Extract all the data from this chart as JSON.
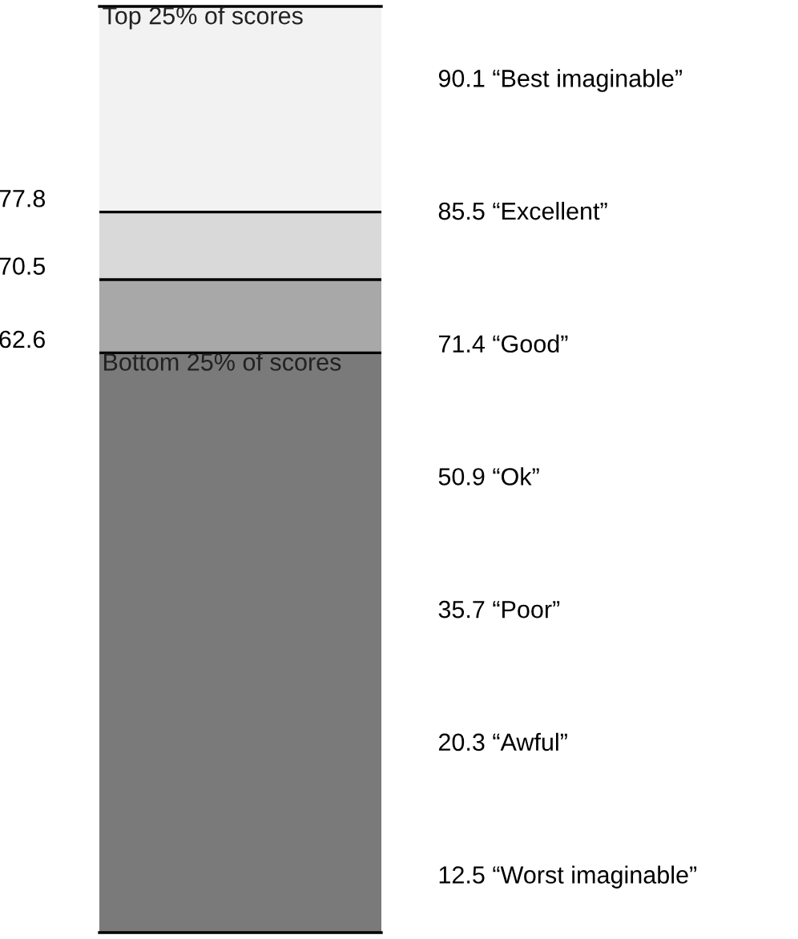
{
  "chart_data": {
    "type": "bar",
    "stacked": true,
    "categories": [
      null
    ],
    "series": [
      {
        "name": "Bottom 25% of scores",
        "color": "#7a7a7a",
        "values": [
          62.6
        ]
      },
      {
        "color": "#a8a8a8",
        "values": [
          7.9
        ]
      },
      {
        "color": "#d9d9d9",
        "values": [
          7.3
        ]
      },
      {
        "name": "Top 25% of scores",
        "color": "#f2f2f2",
        "values": [
          22.2
        ]
      }
    ],
    "ylim": [
      0,
      100
    ],
    "yticks": [
      62.6,
      70.5,
      77.8
    ],
    "tick_labels": "y",
    "grid": "y",
    "legend": false,
    "annotations": [
      "90.1 “Best imaginable”",
      "85.5 “Excellent”",
      "71.4 “Good”",
      "50.9 “Ok”",
      "35.7 “Poor”",
      "20.3 “Awful”",
      "12.5 “Worst imaginable”"
    ]
  }
}
